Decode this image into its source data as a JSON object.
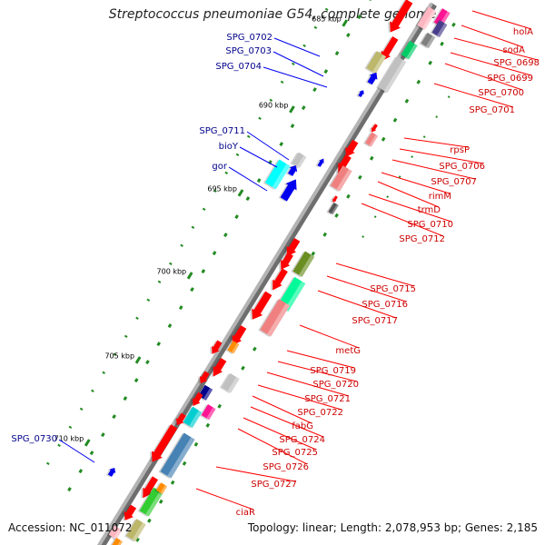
{
  "title": "Streptococcus pneumoniae G54, complete genome",
  "footer": {
    "accession": "Accession: NC_011072",
    "topology": "Topology: linear; Length: 2,078,953 bp; Genes: 2,185"
  },
  "colors": {
    "forward": "#ff0000",
    "reverse": "#0000ee",
    "backbone": "#999999",
    "tick": "#228b22",
    "left_label": "#00008b",
    "right_label": "#cc0000"
  },
  "scale": {
    "ticks": [
      "685 kbp",
      "690 kbp",
      "695 kbp",
      "700 kbp",
      "705 kbp",
      "710 kbp"
    ]
  },
  "left_labels": [
    "SPG_0702",
    "SPG_0703",
    "SPG_0704",
    "SPG_0711",
    "bioY",
    "gor",
    "SPG_0730"
  ],
  "right_labels": [
    "holA",
    "sodA",
    "SPG_0698",
    "SPG_0699",
    "SPG_0700",
    "SPG_0701",
    "rpsP",
    "SPG_0706",
    "SPG_0707",
    "rimM",
    "trmD",
    "SPG_0710",
    "SPG_0712",
    "SPG_0715",
    "SPG_0716",
    "SPG_0717",
    "metG",
    "SPG_0719",
    "SPG_0720",
    "SPG_0721",
    "SPG_0722",
    "fabG",
    "SPG_0724",
    "SPG_0725",
    "SPG_0726",
    "SPG_0727",
    "ciaR"
  ]
}
